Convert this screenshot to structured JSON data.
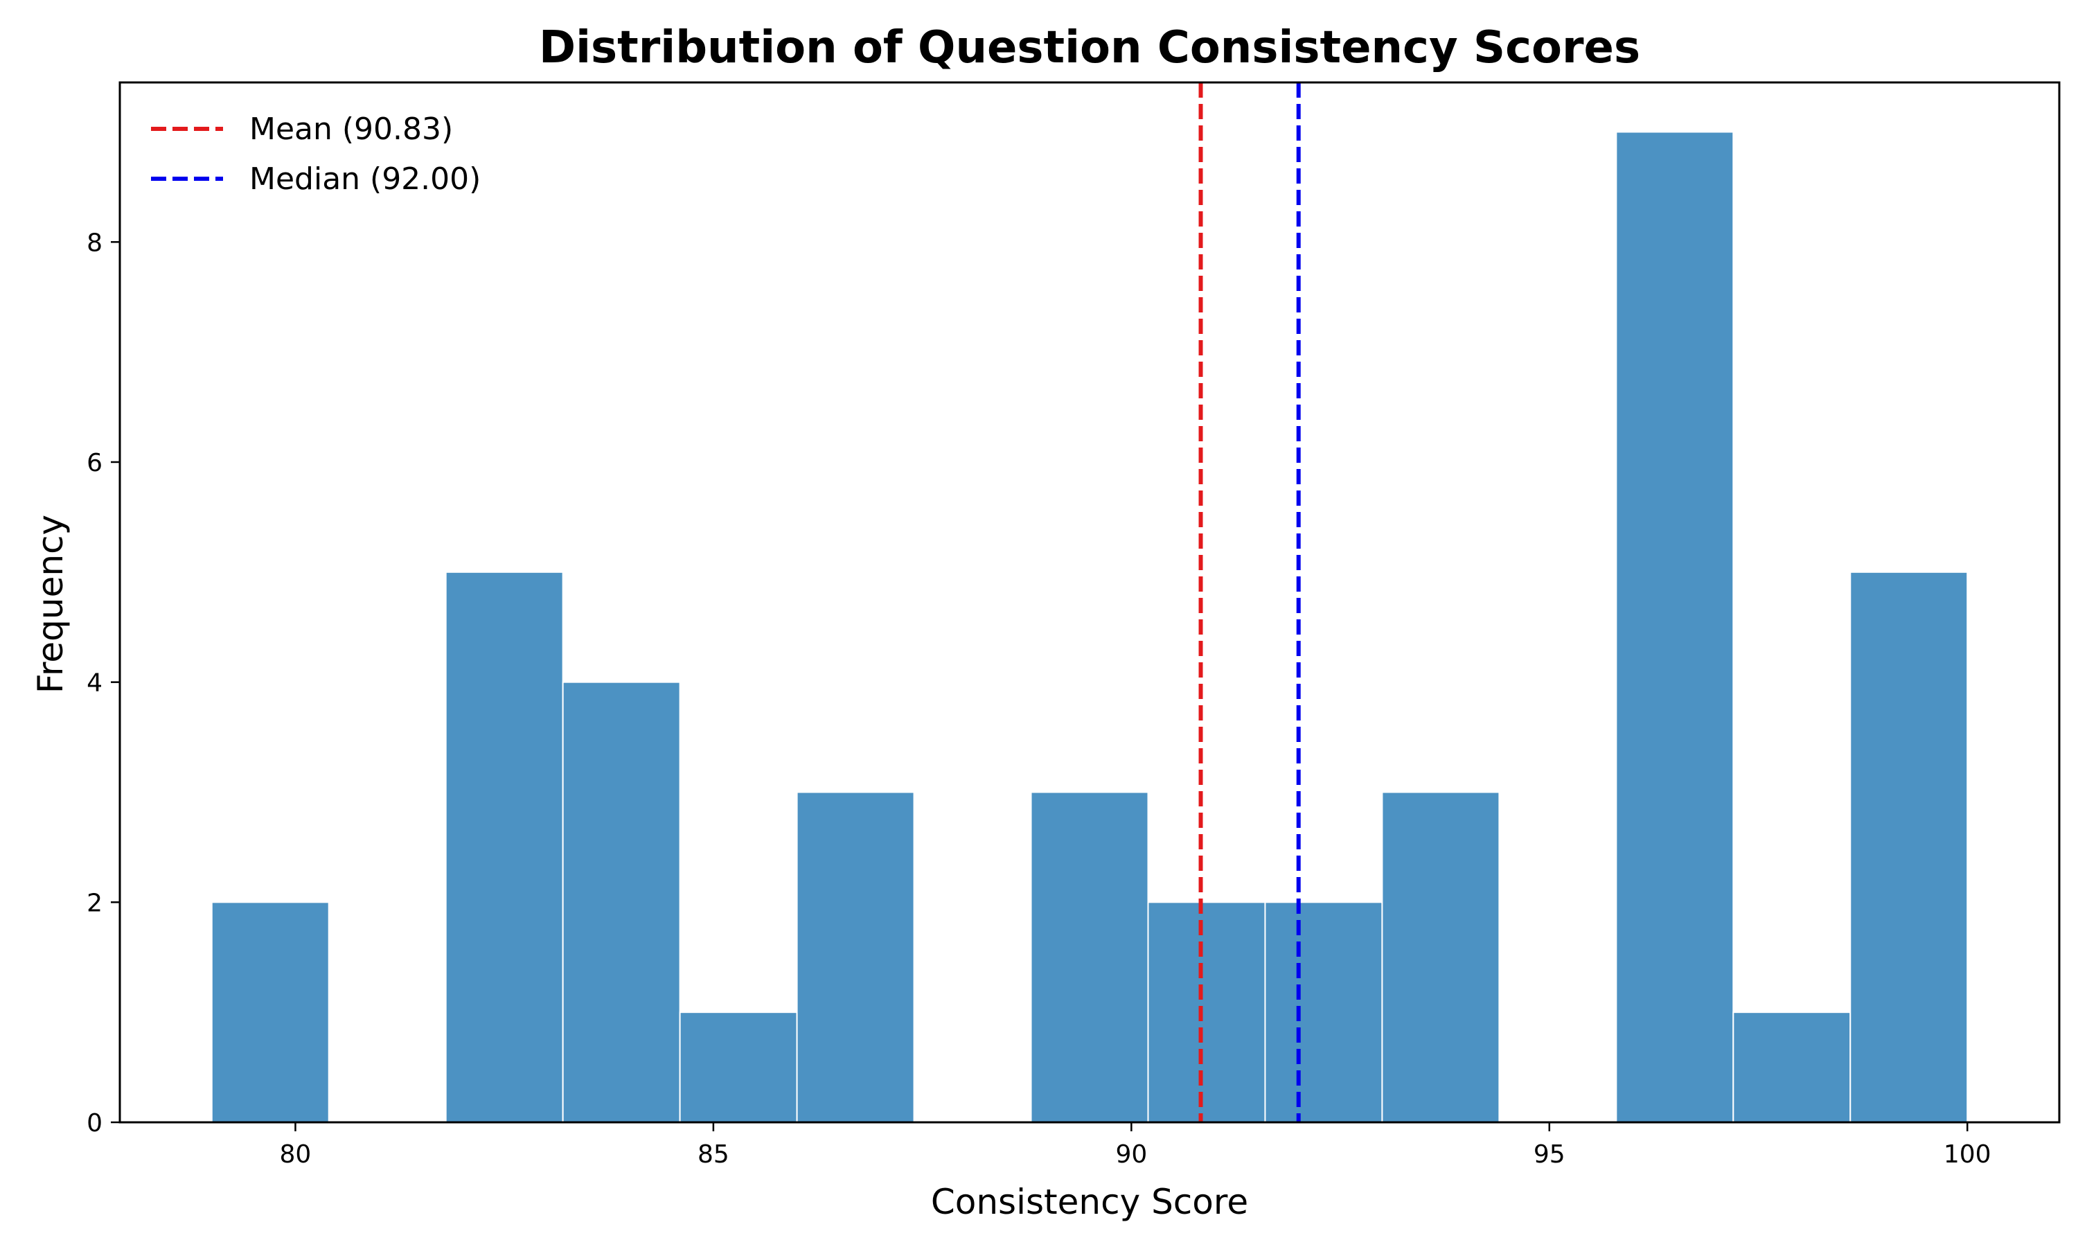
{
  "chart_data": {
    "type": "bar",
    "title": "Distribution of Question Consistency Scores",
    "xlabel": "Consistency Score",
    "ylabel": "Frequency",
    "xlim": [
      77.9,
      101.1
    ],
    "ylim": [
      0,
      9.45
    ],
    "grid": false,
    "legend_position": "top-left",
    "bar_color": "#4c92c3",
    "bar_edge_color": "#ffffff",
    "bins": [
      {
        "x0": 79.0,
        "x1": 80.4,
        "value": 2
      },
      {
        "x0": 80.4,
        "x1": 81.8,
        "value": 0
      },
      {
        "x0": 81.8,
        "x1": 83.2,
        "value": 5
      },
      {
        "x0": 83.2,
        "x1": 84.6,
        "value": 4
      },
      {
        "x0": 84.6,
        "x1": 86.0,
        "value": 1
      },
      {
        "x0": 86.0,
        "x1": 87.4,
        "value": 3
      },
      {
        "x0": 87.4,
        "x1": 88.8,
        "value": 0
      },
      {
        "x0": 88.8,
        "x1": 90.2,
        "value": 3
      },
      {
        "x0": 90.2,
        "x1": 91.6,
        "value": 2
      },
      {
        "x0": 91.6,
        "x1": 93.0,
        "value": 2
      },
      {
        "x0": 93.0,
        "x1": 94.4,
        "value": 3
      },
      {
        "x0": 94.4,
        "x1": 95.8,
        "value": 0
      },
      {
        "x0": 95.8,
        "x1": 97.2,
        "value": 9
      },
      {
        "x0": 97.2,
        "x1": 98.6,
        "value": 1
      },
      {
        "x0": 98.6,
        "x1": 100.0,
        "value": 5
      }
    ],
    "x_ticks": [
      80,
      85,
      90,
      95,
      100
    ],
    "y_ticks": [
      0,
      2,
      4,
      6,
      8
    ],
    "reference_lines": [
      {
        "name": "Mean (90.83)",
        "x": 90.83,
        "color": "#e31a1c",
        "style": "dashed"
      },
      {
        "name": "Median (92.00)",
        "x": 92.0,
        "color": "#0000ee",
        "style": "dashed"
      }
    ]
  }
}
